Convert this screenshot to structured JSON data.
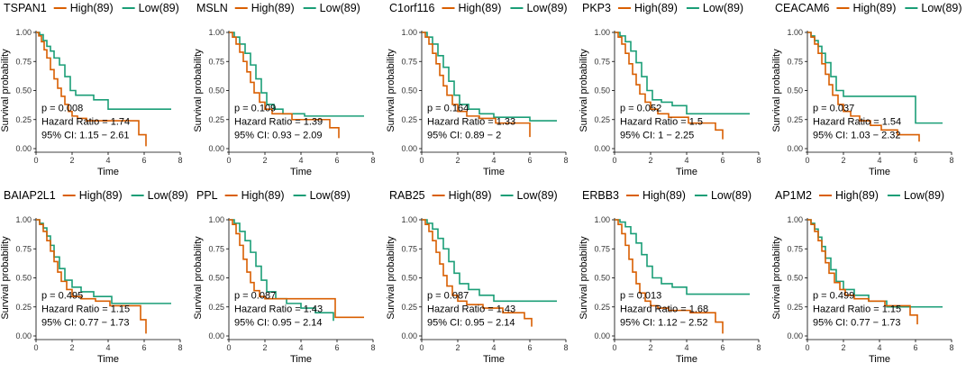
{
  "colors": {
    "high": "#D95F02",
    "low": "#1B9E77",
    "axis": "#000000"
  },
  "chart_data": [
    {
      "type": "line",
      "title": "TSPAN1",
      "legend": [
        "High(89)",
        "Low(89)"
      ],
      "xlabel": "Time",
      "ylabel": "Survival probability",
      "xlim": [
        0,
        8
      ],
      "ylim": [
        0,
        1
      ],
      "xticks": [
        "0",
        "2",
        "4",
        "6",
        "8"
      ],
      "yticks": [
        "0.00",
        "0.25",
        "0.50",
        "0.75",
        "1.00"
      ],
      "stats": [
        "p = 0.008",
        "Hazard Ratio = 1.74",
        "95% CI: 1.15 − 2.61"
      ],
      "series": [
        {
          "name": "High(89)",
          "x": [
            0,
            0.15,
            0.3,
            0.45,
            0.6,
            0.8,
            1.0,
            1.2,
            1.4,
            1.6,
            1.8,
            2.0,
            2.3,
            2.8,
            5.7,
            6.1
          ],
          "y": [
            1,
            0.97,
            0.92,
            0.85,
            0.78,
            0.68,
            0.6,
            0.52,
            0.45,
            0.38,
            0.32,
            0.28,
            0.26,
            0.24,
            0.12,
            0.02
          ]
        },
        {
          "name": "Low(89)",
          "x": [
            0,
            0.2,
            0.4,
            0.6,
            0.8,
            1.0,
            1.3,
            1.6,
            1.9,
            2.2,
            3.2,
            4.0,
            7.5
          ],
          "y": [
            1,
            0.98,
            0.93,
            0.88,
            0.84,
            0.78,
            0.72,
            0.62,
            0.5,
            0.46,
            0.42,
            0.34,
            0.34
          ]
        }
      ]
    },
    {
      "type": "line",
      "title": "MSLN",
      "legend": [
        "High(89)",
        "Low(89)"
      ],
      "xlabel": "Time",
      "ylabel": "Survival probability",
      "xlim": [
        0,
        8
      ],
      "ylim": [
        0,
        1
      ],
      "xticks": [
        "0",
        "2",
        "4",
        "6",
        "8"
      ],
      "yticks": [
        "0.00",
        "0.25",
        "0.50",
        "0.75",
        "1.00"
      ],
      "stats": [
        "p = 0.109",
        "Hazard Ratio = 1.39",
        "95% CI: 0.93 − 2.09"
      ],
      "series": [
        {
          "name": "High(89)",
          "x": [
            0,
            0.2,
            0.4,
            0.6,
            0.8,
            1.0,
            1.2,
            1.4,
            1.7,
            2.0,
            2.4,
            3.5,
            5.6,
            6.1
          ],
          "y": [
            1,
            0.96,
            0.9,
            0.83,
            0.75,
            0.66,
            0.57,
            0.48,
            0.4,
            0.34,
            0.3,
            0.25,
            0.18,
            0.09
          ]
        },
        {
          "name": "Low(89)",
          "x": [
            0,
            0.3,
            0.6,
            0.9,
            1.2,
            1.5,
            1.8,
            2.1,
            2.5,
            3.0,
            4.2,
            7.5
          ],
          "y": [
            1,
            0.96,
            0.9,
            0.82,
            0.72,
            0.6,
            0.48,
            0.38,
            0.34,
            0.3,
            0.28,
            0.28
          ]
        }
      ]
    },
    {
      "type": "line",
      "title": "C1orf116",
      "legend": [
        "High(89)",
        "Low(89)"
      ],
      "xlabel": "Time",
      "ylabel": "Survival probability",
      "xlim": [
        0,
        8
      ],
      "ylim": [
        0,
        1
      ],
      "xticks": [
        "0",
        "2",
        "4",
        "6",
        "8"
      ],
      "yticks": [
        "0.00",
        "0.25",
        "0.50",
        "0.75",
        "1.00"
      ],
      "stats": [
        "p = 0.164",
        "Hazard Ratio = 1.33",
        "95% CI: 0.89 − 2"
      ],
      "series": [
        {
          "name": "High(89)",
          "x": [
            0,
            0.2,
            0.4,
            0.6,
            0.8,
            1.0,
            1.2,
            1.4,
            1.7,
            2.0,
            2.5,
            3.2,
            4.1,
            6.0
          ],
          "y": [
            1,
            0.96,
            0.9,
            0.82,
            0.73,
            0.63,
            0.54,
            0.46,
            0.38,
            0.32,
            0.28,
            0.26,
            0.22,
            0.1
          ]
        },
        {
          "name": "Low(89)",
          "x": [
            0,
            0.3,
            0.6,
            0.9,
            1.2,
            1.5,
            1.8,
            2.1,
            2.6,
            3.2,
            4.0,
            6.0,
            7.5
          ],
          "y": [
            1,
            0.96,
            0.9,
            0.8,
            0.7,
            0.58,
            0.46,
            0.38,
            0.34,
            0.3,
            0.27,
            0.24,
            0.24
          ]
        }
      ]
    },
    {
      "type": "line",
      "title": "PKP3",
      "legend": [
        "High(89)",
        "Low(89)"
      ],
      "xlabel": "Time",
      "ylabel": "Survival probability",
      "xlim": [
        0,
        8
      ],
      "ylim": [
        0,
        1
      ],
      "xticks": [
        "0",
        "2",
        "4",
        "6",
        "8"
      ],
      "yticks": [
        "0.00",
        "0.25",
        "0.50",
        "0.75",
        "1.00"
      ],
      "stats": [
        "p = 0.052",
        "Hazard Ratio = 1.5",
        "95% CI: 1 − 2.25"
      ],
      "series": [
        {
          "name": "High(89)",
          "x": [
            0,
            0.2,
            0.4,
            0.6,
            0.8,
            1.0,
            1.2,
            1.4,
            1.7,
            2.0,
            2.4,
            3.0,
            4.1,
            5.6,
            6.0
          ],
          "y": [
            1,
            0.96,
            0.9,
            0.82,
            0.73,
            0.64,
            0.55,
            0.47,
            0.4,
            0.34,
            0.3,
            0.27,
            0.22,
            0.16,
            0.08
          ]
        },
        {
          "name": "Low(89)",
          "x": [
            0,
            0.3,
            0.6,
            0.9,
            1.2,
            1.5,
            1.8,
            2.1,
            2.6,
            3.2,
            4.0,
            7.5
          ],
          "y": [
            1,
            0.97,
            0.92,
            0.84,
            0.74,
            0.62,
            0.5,
            0.42,
            0.4,
            0.37,
            0.3,
            0.3
          ]
        }
      ]
    },
    {
      "type": "line",
      "title": "CEACAM6",
      "legend": [
        "High(89)",
        "Low(89)"
      ],
      "xlabel": "Time",
      "ylabel": "Survival probability",
      "xlim": [
        0,
        8
      ],
      "ylim": [
        0,
        1
      ],
      "xticks": [
        "0",
        "2",
        "4",
        "6",
        "8"
      ],
      "yticks": [
        "0.00",
        "0.25",
        "0.50",
        "0.75",
        "1.00"
      ],
      "stats": [
        "p = 0.037",
        "Hazard Ratio = 1.54",
        "95% CI: 1.03 − 2.32"
      ],
      "series": [
        {
          "name": "High(89)",
          "x": [
            0,
            0.2,
            0.4,
            0.6,
            0.8,
            1.0,
            1.2,
            1.4,
            1.7,
            2.0,
            2.4,
            2.9,
            3.5,
            4.1,
            5.0,
            6.2
          ],
          "y": [
            1,
            0.96,
            0.9,
            0.82,
            0.73,
            0.64,
            0.55,
            0.46,
            0.38,
            0.32,
            0.28,
            0.24,
            0.2,
            0.16,
            0.12,
            0.06
          ]
        },
        {
          "name": "Low(89)",
          "x": [
            0,
            0.2,
            0.4,
            0.6,
            0.8,
            1.0,
            1.3,
            1.6,
            2.0,
            6.0,
            7.5
          ],
          "y": [
            1,
            0.97,
            0.93,
            0.88,
            0.82,
            0.74,
            0.62,
            0.5,
            0.45,
            0.22,
            0.22
          ]
        }
      ]
    },
    {
      "type": "line",
      "title": "BAIAP2L1",
      "legend": [
        "High(89)",
        "Low(89)"
      ],
      "xlabel": "Time",
      "ylabel": "Survival probability",
      "xlim": [
        0,
        8
      ],
      "ylim": [
        0,
        1
      ],
      "xticks": [
        "0",
        "2",
        "4",
        "6",
        "8"
      ],
      "yticks": [
        "0.00",
        "0.25",
        "0.50",
        "0.75",
        "1.00"
      ],
      "stats": [
        "p = 0.495",
        "Hazard Ratio = 1.15",
        "95% CI: 0.77 − 1.73"
      ],
      "series": [
        {
          "name": "High(89)",
          "x": [
            0,
            0.2,
            0.4,
            0.6,
            0.8,
            1.0,
            1.2,
            1.4,
            1.7,
            2.0,
            2.5,
            3.3,
            4.1,
            5.8,
            6.1
          ],
          "y": [
            1,
            0.96,
            0.9,
            0.82,
            0.73,
            0.64,
            0.55,
            0.47,
            0.4,
            0.34,
            0.32,
            0.3,
            0.26,
            0.14,
            0.02
          ]
        },
        {
          "name": "Low(89)",
          "x": [
            0,
            0.2,
            0.4,
            0.6,
            0.8,
            1.0,
            1.3,
            1.6,
            2.0,
            2.5,
            3.2,
            4.2,
            7.5
          ],
          "y": [
            1,
            0.97,
            0.93,
            0.86,
            0.78,
            0.68,
            0.58,
            0.48,
            0.42,
            0.38,
            0.34,
            0.28,
            0.28
          ]
        }
      ]
    },
    {
      "type": "line",
      "title": "PPL",
      "legend": [
        "High(89)",
        "Low(89)"
      ],
      "xlabel": "Time",
      "ylabel": "Survival probability",
      "xlim": [
        0,
        8
      ],
      "ylim": [
        0,
        1
      ],
      "xticks": [
        "0",
        "2",
        "4",
        "6",
        "8"
      ],
      "yticks": [
        "0.00",
        "0.25",
        "0.50",
        "0.75",
        "1.00"
      ],
      "stats": [
        "p = 0.087",
        "Hazard Ratio = 1.43",
        "95% CI: 0.95 − 2.14"
      ],
      "series": [
        {
          "name": "High(89)",
          "x": [
            0,
            0.2,
            0.4,
            0.6,
            0.8,
            1.0,
            1.2,
            1.4,
            1.7,
            2.0,
            5.9,
            7.5
          ],
          "y": [
            1,
            0.96,
            0.88,
            0.78,
            0.66,
            0.55,
            0.46,
            0.39,
            0.34,
            0.32,
            0.16,
            0.16
          ]
        },
        {
          "name": "Low(89)",
          "x": [
            0,
            0.3,
            0.6,
            0.9,
            1.2,
            1.5,
            1.8,
            2.1,
            2.6,
            3.2,
            4.0,
            4.8,
            5.8
          ],
          "y": [
            1,
            0.97,
            0.9,
            0.82,
            0.72,
            0.6,
            0.48,
            0.38,
            0.32,
            0.28,
            0.24,
            0.2,
            0.13
          ]
        }
      ]
    },
    {
      "type": "line",
      "title": "RAB25",
      "legend": [
        "High(89)",
        "Low(89)"
      ],
      "xlabel": "Time",
      "ylabel": "Survival probability",
      "xlim": [
        0,
        8
      ],
      "ylim": [
        0,
        1
      ],
      "xticks": [
        "0",
        "2",
        "4",
        "6",
        "8"
      ],
      "yticks": [
        "0.00",
        "0.25",
        "0.50",
        "0.75",
        "1.00"
      ],
      "stats": [
        "p = 0.087",
        "Hazard Ratio = 1.43",
        "95% CI: 0.95 − 2.14"
      ],
      "series": [
        {
          "name": "High(89)",
          "x": [
            0,
            0.2,
            0.4,
            0.6,
            0.8,
            1.0,
            1.2,
            1.4,
            1.7,
            2.0,
            2.5,
            3.4,
            4.5,
            5.7,
            6.1
          ],
          "y": [
            1,
            0.96,
            0.9,
            0.82,
            0.72,
            0.62,
            0.52,
            0.43,
            0.35,
            0.3,
            0.27,
            0.24,
            0.2,
            0.15,
            0.08
          ]
        },
        {
          "name": "Low(89)",
          "x": [
            0,
            0.3,
            0.6,
            0.9,
            1.2,
            1.5,
            1.8,
            2.1,
            2.6,
            3.2,
            4.0,
            7.5
          ],
          "y": [
            1,
            0.97,
            0.92,
            0.84,
            0.75,
            0.64,
            0.54,
            0.45,
            0.4,
            0.35,
            0.3,
            0.3
          ]
        }
      ]
    },
    {
      "type": "line",
      "title": "ERBB3",
      "legend": [
        "High(89)",
        "Low(89)"
      ],
      "xlabel": "Time",
      "ylabel": "Survival probability",
      "xlim": [
        0,
        8
      ],
      "ylim": [
        0,
        1
      ],
      "xticks": [
        "0",
        "2",
        "4",
        "6",
        "8"
      ],
      "yticks": [
        "0.00",
        "0.25",
        "0.50",
        "0.75",
        "1.00"
      ],
      "stats": [
        "p = 0.013",
        "Hazard Ratio = 1.68",
        "95% CI: 1.12 − 2.52"
      ],
      "series": [
        {
          "name": "High(89)",
          "x": [
            0,
            0.2,
            0.4,
            0.6,
            0.8,
            1.0,
            1.2,
            1.4,
            1.7,
            2.0,
            2.4,
            3.0,
            4.2,
            5.6,
            6.0
          ],
          "y": [
            1,
            0.96,
            0.88,
            0.78,
            0.66,
            0.55,
            0.45,
            0.37,
            0.3,
            0.26,
            0.24,
            0.22,
            0.2,
            0.12,
            0.02
          ]
        },
        {
          "name": "Low(89)",
          "x": [
            0,
            0.3,
            0.6,
            0.9,
            1.2,
            1.5,
            1.8,
            2.1,
            2.6,
            3.2,
            4.0,
            7.5
          ],
          "y": [
            1,
            0.98,
            0.94,
            0.88,
            0.8,
            0.7,
            0.6,
            0.5,
            0.45,
            0.42,
            0.36,
            0.36
          ]
        }
      ]
    },
    {
      "type": "line",
      "title": "AP1M2",
      "legend": [
        "High(89)",
        "Low(89)"
      ],
      "xlabel": "Time",
      "ylabel": "Survival probability",
      "xlim": [
        0,
        8
      ],
      "ylim": [
        0,
        1
      ],
      "xticks": [
        "0",
        "2",
        "4",
        "6",
        "8"
      ],
      "yticks": [
        "0.00",
        "0.25",
        "0.50",
        "0.75",
        "1.00"
      ],
      "stats": [
        "p = 0.499",
        "Hazard Ratio = 1.15",
        "95% CI: 0.77 − 1.73"
      ],
      "series": [
        {
          "name": "High(89)",
          "x": [
            0,
            0.2,
            0.4,
            0.6,
            0.8,
            1.0,
            1.2,
            1.5,
            1.8,
            2.1,
            2.6,
            3.4,
            4.3,
            5.7,
            6.1
          ],
          "y": [
            1,
            0.96,
            0.9,
            0.82,
            0.73,
            0.63,
            0.54,
            0.46,
            0.4,
            0.35,
            0.32,
            0.3,
            0.26,
            0.18,
            0.1
          ]
        },
        {
          "name": "Low(89)",
          "x": [
            0,
            0.2,
            0.4,
            0.6,
            0.8,
            1.0,
            1.3,
            1.6,
            2.0,
            2.6,
            3.4,
            4.4,
            7.5
          ],
          "y": [
            1,
            0.97,
            0.92,
            0.85,
            0.77,
            0.67,
            0.57,
            0.47,
            0.4,
            0.35,
            0.3,
            0.25,
            0.25
          ]
        }
      ]
    }
  ]
}
